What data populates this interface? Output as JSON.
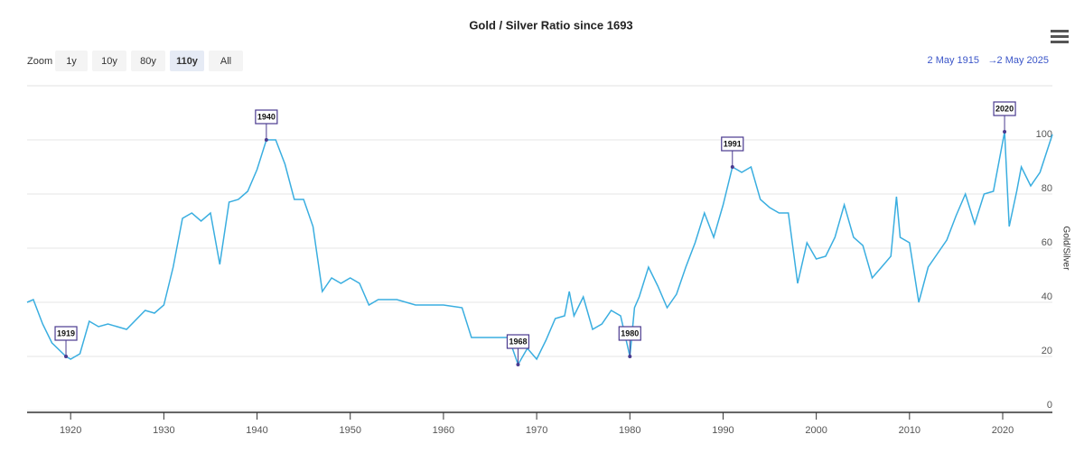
{
  "chart_data": {
    "type": "line",
    "title": "Gold / Silver Ratio since 1693",
    "y_label": "Gold/Silver",
    "color": "#3aaee0",
    "grid": true,
    "xlim": [
      1915.33,
      2025.33
    ],
    "xticks": [
      1920,
      1930,
      1940,
      1950,
      1960,
      1970,
      1980,
      1990,
      2000,
      2010,
      2020
    ],
    "ylim": [
      0,
      120
    ],
    "yticks": [
      0,
      20,
      40,
      60,
      80,
      100
    ],
    "x": [
      1915.33,
      1916,
      1917,
      1918,
      1919.5,
      1920,
      1921,
      1922,
      1923,
      1924,
      1926,
      1928,
      1929,
      1930,
      1931,
      1932,
      1933,
      1934,
      1935,
      1936,
      1937,
      1938,
      1939,
      1940,
      1941,
      1942,
      1943,
      1944,
      1945,
      1946,
      1947,
      1948,
      1949,
      1950,
      1951,
      1952,
      1953,
      1955,
      1957,
      1959,
      1960,
      1962,
      1963,
      1964,
      1966,
      1967,
      1968,
      1969,
      1970,
      1971,
      1972,
      1973,
      1973.5,
      1974,
      1975,
      1976,
      1977,
      1978,
      1979,
      1980,
      1980.5,
      1981,
      1982,
      1983,
      1984,
      1985,
      1986,
      1987,
      1988,
      1989,
      1990,
      1991,
      1992,
      1993,
      1994,
      1995,
      1996,
      1997,
      1998,
      1999,
      2000,
      2001,
      2002,
      2003,
      2004,
      2005,
      2006,
      2007,
      2008,
      2008.6,
      2009,
      2010,
      2011,
      2012,
      2013,
      2014,
      2015,
      2016,
      2017,
      2018,
      2019,
      2020.2,
      2020.7,
      2021.5,
      2022,
      2023,
      2024,
      2025.33
    ],
    "values": [
      40,
      41,
      32,
      25,
      20,
      19,
      21,
      33,
      31,
      32,
      30,
      37,
      36,
      39,
      53,
      71,
      73,
      70,
      73,
      54,
      77,
      78,
      81,
      89,
      100,
      100,
      91,
      78,
      78,
      68,
      44,
      49,
      47,
      49,
      47,
      39,
      41,
      41,
      39,
      39,
      39,
      38,
      27,
      27,
      27,
      27,
      17,
      23,
      19,
      26,
      34,
      35,
      44,
      35,
      42,
      30,
      32,
      37,
      35,
      20,
      38,
      42,
      53,
      46,
      38,
      43,
      53,
      62,
      73,
      64,
      76,
      90,
      88,
      90,
      78,
      75,
      73,
      73,
      47,
      62,
      56,
      57,
      64,
      76,
      64,
      61,
      49,
      53,
      57,
      79,
      64,
      62,
      40,
      53,
      58,
      63,
      72,
      80,
      69,
      80,
      81,
      103,
      68,
      81,
      90,
      83,
      88,
      102
    ],
    "annotations": [
      {
        "label": "1919",
        "x": 1919.5,
        "y": 20
      },
      {
        "label": "1940",
        "x": 1941,
        "y": 100
      },
      {
        "label": "1968",
        "x": 1968,
        "y": 17
      },
      {
        "label": "1980",
        "x": 1980,
        "y": 20
      },
      {
        "label": "1991",
        "x": 1991,
        "y": 90
      },
      {
        "label": "2020",
        "x": 2020.2,
        "y": 103
      }
    ]
  },
  "toolbar": {
    "zoom_label": "Zoom",
    "buttons": [
      "1y",
      "10y",
      "80y",
      "110y",
      "All"
    ],
    "active_button": "110y",
    "range_from": "2 May 1915",
    "range_separator": "→",
    "range_to": "2 May 2025"
  }
}
